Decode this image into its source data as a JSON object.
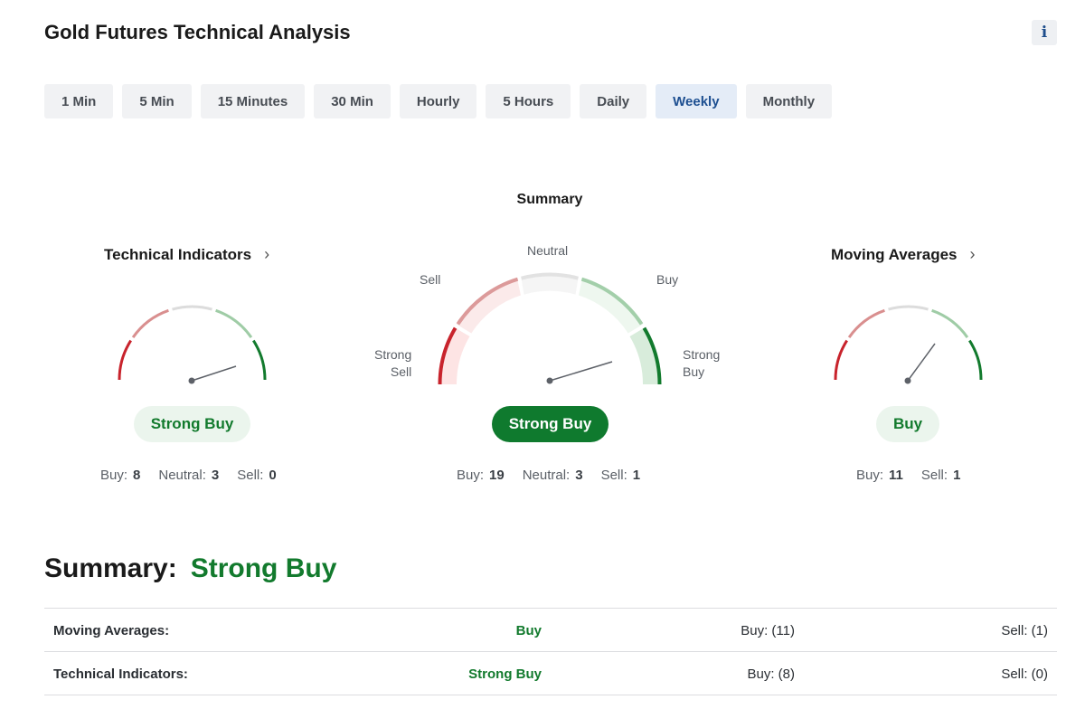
{
  "header": {
    "title": "Gold Futures Technical Analysis",
    "info_icon": "i"
  },
  "tabs": [
    {
      "label": "1 Min",
      "active": false
    },
    {
      "label": "5 Min",
      "active": false
    },
    {
      "label": "15 Minutes",
      "active": false
    },
    {
      "label": "30 Min",
      "active": false
    },
    {
      "label": "Hourly",
      "active": false
    },
    {
      "label": "5 Hours",
      "active": false
    },
    {
      "label": "Daily",
      "active": false
    },
    {
      "label": "Weekly",
      "active": true
    },
    {
      "label": "Monthly",
      "active": false
    }
  ],
  "summary_gauge": {
    "title": "Summary",
    "labels": {
      "strong_sell": "Strong\nSell",
      "sell": "Sell",
      "neutral": "Neutral",
      "buy": "Buy",
      "strong_buy": "Strong\nBuy"
    },
    "signal": "Strong Buy",
    "counts": {
      "buy_label": "Buy:",
      "buy": "19",
      "neutral_label": "Neutral:",
      "neutral": "3",
      "sell_label": "Sell:",
      "sell": "1"
    }
  },
  "technical_indicators": {
    "title": "Technical Indicators",
    "signal": "Strong Buy",
    "counts": {
      "buy_label": "Buy:",
      "buy": "8",
      "neutral_label": "Neutral:",
      "neutral": "3",
      "sell_label": "Sell:",
      "sell": "0"
    }
  },
  "moving_averages": {
    "title": "Moving Averages",
    "signal": "Buy",
    "counts": {
      "buy_label": "Buy:",
      "buy": "11",
      "sell_label": "Sell:",
      "sell": "1"
    }
  },
  "summary": {
    "label": "Summary:",
    "value": "Strong Buy",
    "rows": [
      {
        "name": "Moving Averages:",
        "signal": "Buy",
        "buy": "Buy: (11)",
        "sell": "Sell: (1)"
      },
      {
        "name": "Technical Indicators:",
        "signal": "Strong Buy",
        "buy": "Buy: (8)",
        "sell": "Sell: (0)"
      }
    ]
  },
  "colors": {
    "strong_sell": "#c8232c",
    "sell": "#d98f8f",
    "neutral": "#dcdcdc",
    "buy": "#9fcca6",
    "strong_buy": "#127a2d",
    "accent": "#1d4f91"
  }
}
